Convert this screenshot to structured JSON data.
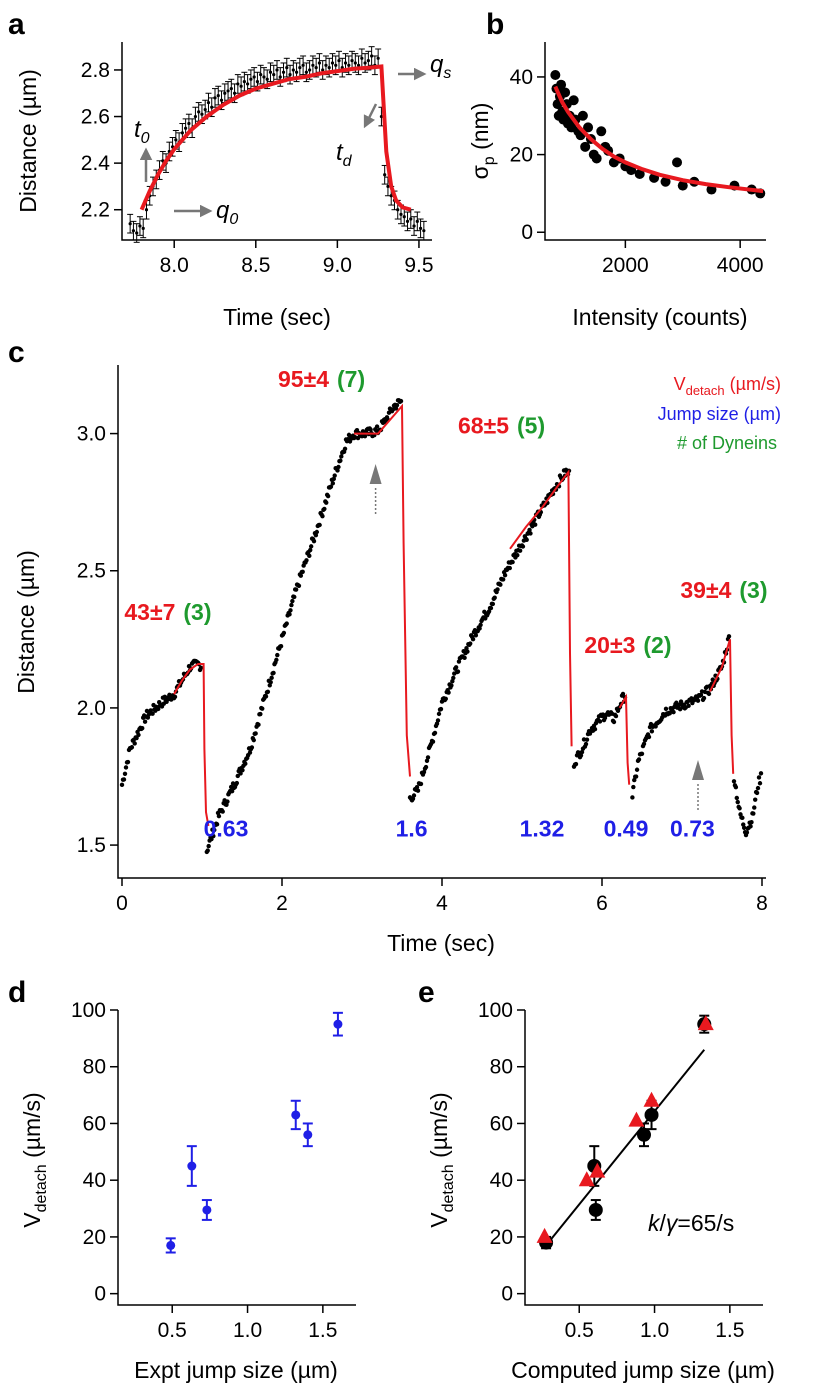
{
  "panels": {
    "a": "a",
    "b": "b",
    "c": "c",
    "d": "d",
    "e": "e"
  },
  "chart_data": [
    {
      "panel": "a",
      "type": "scatter",
      "xlabel": "Time (sec)",
      "ylabel": "Distance (µm)",
      "xlim": [
        7.68,
        9.58
      ],
      "ylim": [
        2.07,
        2.92
      ],
      "xticks": [
        "8.0",
        "8.5",
        "9.0",
        "9.5"
      ],
      "yticks": [
        "2.2",
        "2.4",
        "2.6",
        "2.8"
      ],
      "annotations": {
        "t0": {
          "main": "t",
          "sub": "0"
        },
        "q0": {
          "main": "q",
          "sub": "0"
        },
        "qs": {
          "main": "q",
          "sub": "s"
        },
        "td": {
          "main": "t",
          "sub": "d"
        }
      },
      "series": [
        {
          "kind": "data-with-error-bars",
          "x": [
            7.73,
            7.75,
            7.77,
            7.79,
            7.81,
            7.83,
            7.85,
            7.87,
            7.89,
            7.91,
            7.93,
            7.95,
            7.97,
            7.99,
            8.01,
            8.03,
            8.05,
            8.07,
            8.09,
            8.11,
            8.13,
            8.15,
            8.17,
            8.19,
            8.21,
            8.23,
            8.25,
            8.27,
            8.29,
            8.31,
            8.33,
            8.35,
            8.37,
            8.39,
            8.41,
            8.43,
            8.45,
            8.47,
            8.49,
            8.51,
            8.53,
            8.55,
            8.57,
            8.59,
            8.61,
            8.63,
            8.65,
            8.67,
            8.69,
            8.71,
            8.73,
            8.75,
            8.77,
            8.79,
            8.81,
            8.83,
            8.85,
            8.87,
            8.89,
            8.91,
            8.93,
            8.95,
            8.97,
            8.99,
            9.01,
            9.03,
            9.05,
            9.07,
            9.09,
            9.11,
            9.13,
            9.15,
            9.17,
            9.19,
            9.21,
            9.23,
            9.25,
            9.27,
            9.29,
            9.31,
            9.33,
            9.35,
            9.37,
            9.39,
            9.41,
            9.43,
            9.45,
            9.47,
            9.49,
            9.51,
            9.53
          ],
          "y": [
            2.14,
            2.11,
            2.1,
            2.13,
            2.12,
            2.2,
            2.26,
            2.3,
            2.33,
            2.37,
            2.41,
            2.4,
            2.45,
            2.47,
            2.5,
            2.49,
            2.53,
            2.55,
            2.57,
            2.55,
            2.6,
            2.62,
            2.61,
            2.63,
            2.66,
            2.64,
            2.68,
            2.69,
            2.67,
            2.7,
            2.71,
            2.72,
            2.7,
            2.74,
            2.73,
            2.75,
            2.74,
            2.76,
            2.77,
            2.75,
            2.78,
            2.77,
            2.76,
            2.79,
            2.78,
            2.8,
            2.77,
            2.79,
            2.81,
            2.78,
            2.8,
            2.79,
            2.81,
            2.82,
            2.79,
            2.8,
            2.82,
            2.81,
            2.83,
            2.8,
            2.82,
            2.81,
            2.83,
            2.82,
            2.84,
            2.81,
            2.83,
            2.82,
            2.84,
            2.83,
            2.82,
            2.85,
            2.83,
            2.84,
            2.86,
            2.82,
            2.85,
            2.6,
            2.35,
            2.3,
            2.26,
            2.24,
            2.2,
            2.18,
            2.17,
            2.15,
            2.16,
            2.13,
            2.15,
            2.12,
            2.11
          ],
          "err": 0.04
        },
        {
          "kind": "fit",
          "color": "#e8191f",
          "x": [
            7.8,
            7.85,
            7.9,
            7.95,
            8.0,
            8.1,
            8.2,
            8.3,
            8.4,
            8.5,
            8.6,
            8.7,
            8.8,
            8.9,
            9.0,
            9.1,
            9.2,
            9.27,
            9.27,
            9.3,
            9.33,
            9.36,
            9.4,
            9.45
          ],
          "y": [
            2.2,
            2.28,
            2.35,
            2.41,
            2.46,
            2.54,
            2.6,
            2.65,
            2.69,
            2.72,
            2.74,
            2.76,
            2.77,
            2.785,
            2.795,
            2.805,
            2.81,
            2.815,
            2.815,
            2.45,
            2.3,
            2.24,
            2.21,
            2.2
          ]
        }
      ]
    },
    {
      "panel": "b",
      "type": "scatter",
      "xlabel": "Intensity (counts)",
      "ylabel": {
        "main": "σ",
        "sub": "p",
        "unit": " (nm)"
      },
      "xlim": [
        600,
        4450
      ],
      "ylim": [
        -2,
        49
      ],
      "xticks": [
        "2000",
        "4000"
      ],
      "yticks": [
        "0",
        "20",
        "40"
      ],
      "series": [
        {
          "kind": "points",
          "x": [
            780,
            800,
            820,
            840,
            860,
            880,
            900,
            920,
            950,
            980,
            1000,
            1030,
            1060,
            1100,
            1130,
            1180,
            1220,
            1260,
            1300,
            1350,
            1400,
            1450,
            1500,
            1580,
            1650,
            1700,
            1800,
            1900,
            2000,
            2100,
            2250,
            2500,
            2700,
            2900,
            3000,
            3200,
            3500,
            3900,
            4200,
            4350
          ],
          "y": [
            40.5,
            37,
            33,
            30,
            35,
            38,
            31,
            29,
            36,
            33,
            28,
            30,
            27,
            34,
            29,
            26,
            25,
            30,
            22,
            27,
            24,
            20,
            19,
            26,
            22,
            21,
            18,
            19,
            17,
            16,
            15,
            14,
            13,
            18,
            12,
            13,
            11,
            12,
            11,
            10
          ]
        },
        {
          "kind": "fit",
          "color": "#e8191f",
          "x": [
            780,
            900,
            1000,
            1200,
            1400,
            1600,
            1800,
            2000,
            2300,
            2600,
            3000,
            3400,
            3800,
            4400
          ],
          "y": [
            37.5,
            33.5,
            31,
            27,
            24,
            21.5,
            19.5,
            18,
            16.2,
            14.8,
            13.4,
            12.4,
            11.6,
            10.6
          ]
        }
      ]
    },
    {
      "panel": "c",
      "type": "scatter",
      "xlabel": "Time (sec)",
      "ylabel": "Distance (µm)",
      "xlim": [
        -0.05,
        8.05
      ],
      "ylim": [
        1.38,
        3.25
      ],
      "xticks": [
        "0",
        "2",
        "4",
        "6",
        "8"
      ],
      "yticks": [
        "1.5",
        "2.0",
        "2.5",
        "3.0"
      ],
      "legend": [
        {
          "main": "V",
          "sub": "detach",
          "rest": " (µm/s)",
          "color": "#e8191f"
        },
        {
          "main": "Jump size (µm)",
          "sub": "",
          "rest": "",
          "color": "#1f1fe6"
        },
        {
          "main": "# of Dyneins",
          "sub": "",
          "rest": "",
          "color": "#1e9a2e"
        }
      ],
      "velocity_labels": [
        {
          "v": "43±7",
          "n": "(3)",
          "x": 0.03,
          "y": 2.32
        },
        {
          "v": "95±4",
          "n": "(7)",
          "x": 1.95,
          "y": 3.17
        },
        {
          "v": "68±5",
          "n": "(5)",
          "x": 4.2,
          "y": 3.0
        },
        {
          "v": "20±3",
          "n": "(2)",
          "x": 5.78,
          "y": 2.2
        },
        {
          "v": "39±4",
          "n": "(3)",
          "x": 6.98,
          "y": 2.4
        }
      ],
      "jump_labels": [
        {
          "text": "0.63",
          "x": 1.3
        },
        {
          "text": "1.6",
          "x": 3.62
        },
        {
          "text": "1.32",
          "x": 5.25
        },
        {
          "text": "0.49",
          "x": 6.3
        },
        {
          "text": "0.73",
          "x": 7.13
        }
      ],
      "jump_label_y": 1.56,
      "arrows_x": [
        3.17,
        7.2
      ],
      "segments": [
        [
          [
            0.0,
            1.72
          ],
          [
            0.1,
            1.85
          ],
          [
            0.3,
            1.97
          ],
          [
            0.5,
            2.02
          ],
          [
            0.65,
            2.05
          ],
          [
            0.75,
            2.1
          ],
          [
            0.85,
            2.15
          ],
          [
            0.95,
            2.16
          ],
          [
            1.0,
            2.15
          ]
        ],
        [
          [
            1.06,
            1.48
          ],
          [
            1.2,
            1.6
          ],
          [
            1.4,
            1.72
          ],
          [
            1.6,
            1.85
          ],
          [
            1.8,
            2.05
          ],
          [
            2.0,
            2.25
          ],
          [
            2.2,
            2.45
          ],
          [
            2.4,
            2.62
          ],
          [
            2.6,
            2.8
          ],
          [
            2.8,
            2.97
          ],
          [
            2.9,
            3.0
          ],
          [
            3.05,
            3.0
          ],
          [
            3.2,
            3.01
          ],
          [
            3.3,
            3.05
          ],
          [
            3.4,
            3.1
          ],
          [
            3.5,
            3.12
          ]
        ],
        [
          [
            3.6,
            1.67
          ],
          [
            3.7,
            1.7
          ],
          [
            3.85,
            1.85
          ],
          [
            4.0,
            2.02
          ],
          [
            4.2,
            2.15
          ],
          [
            4.4,
            2.27
          ],
          [
            4.6,
            2.37
          ],
          [
            4.8,
            2.5
          ],
          [
            5.0,
            2.6
          ],
          [
            5.2,
            2.7
          ],
          [
            5.4,
            2.8
          ],
          [
            5.55,
            2.86
          ],
          [
            5.6,
            2.85
          ]
        ],
        [
          [
            5.65,
            1.8
          ],
          [
            5.75,
            1.85
          ],
          [
            5.85,
            1.92
          ],
          [
            5.95,
            1.95
          ],
          [
            6.05,
            1.98
          ],
          [
            6.15,
            1.96
          ],
          [
            6.25,
            2.03
          ],
          [
            6.3,
            2.05
          ]
        ],
        [
          [
            6.38,
            1.68
          ],
          [
            6.45,
            1.8
          ],
          [
            6.6,
            1.92
          ],
          [
            6.8,
            1.99
          ],
          [
            7.0,
            2.01
          ],
          [
            7.2,
            2.03
          ],
          [
            7.35,
            2.07
          ],
          [
            7.5,
            2.15
          ],
          [
            7.6,
            2.27
          ]
        ],
        [
          [
            7.65,
            1.75
          ],
          [
            7.72,
            1.62
          ],
          [
            7.8,
            1.55
          ],
          [
            7.88,
            1.6
          ],
          [
            7.95,
            1.72
          ],
          [
            8.0,
            1.76
          ]
        ]
      ],
      "fits": [
        [
          [
            0.65,
            2.05
          ],
          [
            0.75,
            2.1
          ],
          [
            0.85,
            2.14
          ],
          [
            0.95,
            2.16
          ],
          [
            1.02,
            2.16
          ],
          [
            1.03,
            1.85
          ],
          [
            1.05,
            1.62
          ],
          [
            1.08,
            1.57
          ]
        ],
        [
          [
            2.9,
            3.0
          ],
          [
            3.2,
            3.0
          ],
          [
            3.35,
            3.05
          ],
          [
            3.5,
            3.1
          ],
          [
            3.52,
            2.6
          ],
          [
            3.56,
            1.9
          ],
          [
            3.6,
            1.75
          ]
        ],
        [
          [
            4.85,
            2.58
          ],
          [
            5.05,
            2.66
          ],
          [
            5.25,
            2.73
          ],
          [
            5.45,
            2.81
          ],
          [
            5.58,
            2.86
          ],
          [
            5.6,
            2.2
          ],
          [
            5.62,
            1.86
          ]
        ],
        [
          [
            6.22,
            2.0
          ],
          [
            6.3,
            2.04
          ],
          [
            6.32,
            1.8
          ],
          [
            6.34,
            1.72
          ]
        ],
        [
          [
            7.35,
            2.06
          ],
          [
            7.5,
            2.15
          ],
          [
            7.6,
            2.25
          ],
          [
            7.62,
            1.9
          ],
          [
            7.64,
            1.76
          ]
        ]
      ]
    },
    {
      "panel": "d",
      "type": "scatter",
      "xlabel": "Expt jump size (µm)",
      "ylabel": {
        "main": "V",
        "sub": "detach",
        "unit": " (µm/s)"
      },
      "xlim": [
        0.14,
        1.72
      ],
      "ylim": [
        -4,
        100
      ],
      "xticks": [
        "0.5",
        "1.0",
        "1.5"
      ],
      "yticks": [
        "0",
        "20",
        "40",
        "60",
        "80",
        "100"
      ],
      "series": [
        {
          "kind": "points-with-error-bars",
          "color": "#1f1fe6",
          "x": [
            0.49,
            0.63,
            0.73,
            1.32,
            1.4,
            1.6
          ],
          "y": [
            17,
            45,
            29.5,
            63,
            56,
            95
          ],
          "err": [
            2.5,
            7,
            3.5,
            5,
            4,
            4
          ]
        }
      ]
    },
    {
      "panel": "e",
      "type": "scatter",
      "xlabel": "Computed jump size (µm)",
      "ylabel": {
        "main": "V",
        "sub": "detach",
        "unit": " (µm/s)"
      },
      "xlim": [
        0.14,
        1.72
      ],
      "ylim": [
        -4,
        100
      ],
      "xticks": [
        "0.5",
        "1.0",
        "1.5"
      ],
      "yticks": [
        "0",
        "20",
        "40",
        "60",
        "80",
        "100"
      ],
      "annotation": {
        "k": "k",
        "slash": "/",
        "gamma": "γ",
        "rest": "=65/s"
      },
      "series": [
        {
          "kind": "black-circles-with-error-bars",
          "x": [
            0.28,
            0.6,
            0.61,
            0.93,
            0.98,
            1.33
          ],
          "y": [
            18,
            45,
            29.5,
            56,
            63,
            95
          ],
          "err": [
            2,
            7,
            3.5,
            4,
            5,
            3
          ]
        },
        {
          "kind": "red-triangles",
          "color": "#e8191f",
          "x": [
            0.27,
            0.55,
            0.62,
            0.88,
            0.98,
            1.34
          ],
          "y": [
            20,
            40,
            43,
            61,
            68,
            95
          ]
        },
        {
          "kind": "fit-line",
          "x": [
            0.28,
            1.33
          ],
          "y": [
            17,
            86
          ]
        }
      ]
    }
  ]
}
